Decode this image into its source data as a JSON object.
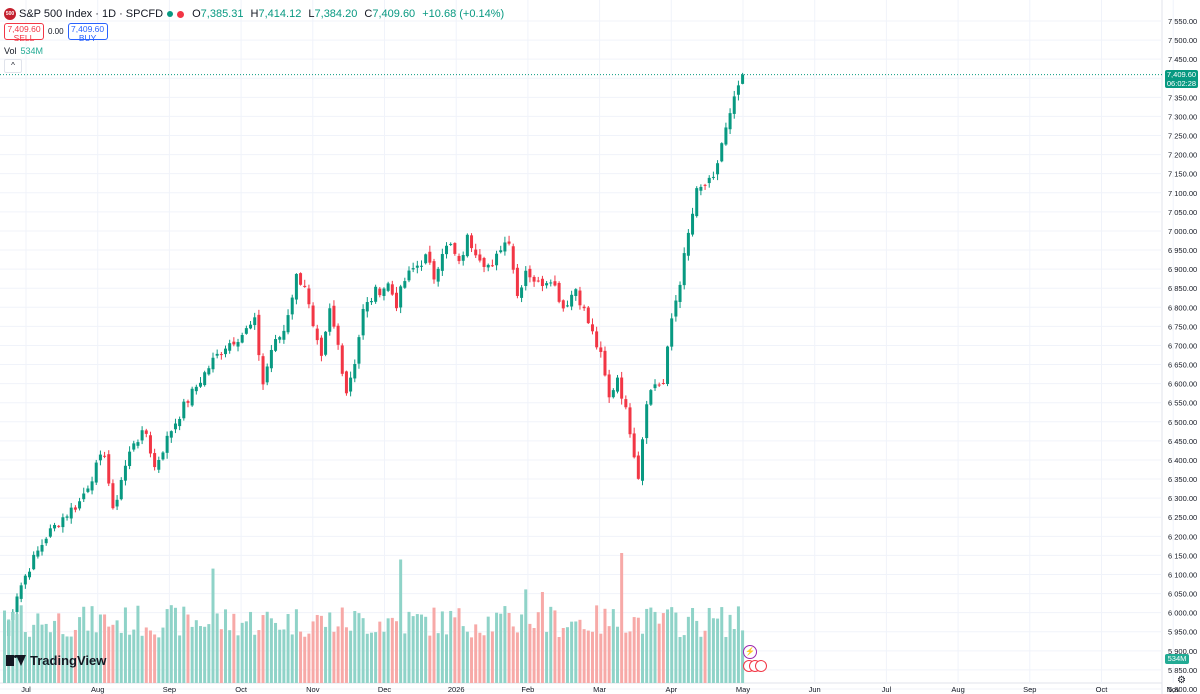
{
  "header": {
    "logo_text": "500",
    "title": "S&P 500 Index · 1D · SPCFD",
    "ohlc": [
      {
        "k": "O",
        "v": "7,385.31"
      },
      {
        "k": "H",
        "v": "7,414.12"
      },
      {
        "k": "L",
        "v": "7,384.20"
      },
      {
        "k": "C",
        "v": "7,409.60"
      },
      {
        "k": "",
        "v": "+10.68 (+0.14%)"
      }
    ]
  },
  "trade": {
    "sell_price": "7,409.60",
    "sell_label": "SELL",
    "spread": "0.00",
    "buy_price": "7,409.60",
    "buy_label": "BUY"
  },
  "volume": {
    "label": "Vol",
    "value": "534M",
    "collapse_glyph": "^"
  },
  "branding": {
    "name": "TradingView"
  },
  "last_price": {
    "price": "7,409.60",
    "countdown": "06:02:28"
  },
  "volume_badge": "534M",
  "colors": {
    "up": "#089981",
    "down": "#f23645",
    "vol_up": "#8fd3c8",
    "vol_down": "#f7a9a7",
    "grid": "#f0f3fa"
  },
  "chart_data": {
    "type": "candlestick",
    "y_axis": {
      "min": 5800,
      "max": 7550,
      "step": 50,
      "side": "right"
    },
    "y_ticks": [
      "7,550.00",
      "7,500.00",
      "7,450.00",
      "7,400.00",
      "7,350.00",
      "7,300.00",
      "7,250.00",
      "7,200.00",
      "7,150.00",
      "7,100.00",
      "7,050.00",
      "7,000.00",
      "6,950.00",
      "6,900.00",
      "6,850.00",
      "6,800.00",
      "6,750.00",
      "6,700.00",
      "6,650.00",
      "6,600.00",
      "6,550.00",
      "6,500.00",
      "6,450.00",
      "6,400.00",
      "6,350.00",
      "6,300.00",
      "6,250.00",
      "6,200.00",
      "6,150.00",
      "6,100.00",
      "6,050.00",
      "6,000.00",
      "5,950.00",
      "5,900.00",
      "5,850.00",
      "5,800.00"
    ],
    "x_ticks": [
      "Jul",
      "Aug",
      "Sep",
      "Oct",
      "Nov",
      "Dec",
      "2026",
      "Feb",
      "Mar",
      "Apr",
      "May",
      "Jun",
      "Jul",
      "Aug",
      "Sep",
      "Oct",
      "Nov"
    ],
    "anchors": [
      [
        0,
        5940
      ],
      [
        3,
        6050
      ],
      [
        6,
        6120
      ],
      [
        10,
        6200
      ],
      [
        14,
        6250
      ],
      [
        18,
        6290
      ],
      [
        22,
        6380
      ],
      [
        24,
        6420
      ],
      [
        26,
        6260
      ],
      [
        28,
        6350
      ],
      [
        31,
        6450
      ],
      [
        34,
        6470
      ],
      [
        36,
        6380
      ],
      [
        40,
        6480
      ],
      [
        43,
        6540
      ],
      [
        47,
        6610
      ],
      [
        50,
        6660
      ],
      [
        53,
        6700
      ],
      [
        57,
        6730
      ],
      [
        60,
        6760
      ],
      [
        62,
        6600
      ],
      [
        64,
        6690
      ],
      [
        67,
        6740
      ],
      [
        70,
        6880
      ],
      [
        72,
        6860
      ],
      [
        74,
        6740
      ],
      [
        76,
        6660
      ],
      [
        78,
        6790
      ],
      [
        80,
        6700
      ],
      [
        82,
        6580
      ],
      [
        84,
        6660
      ],
      [
        86,
        6790
      ],
      [
        89,
        6840
      ],
      [
        92,
        6860
      ],
      [
        94,
        6810
      ],
      [
        96,
        6870
      ],
      [
        98,
        6900
      ],
      [
        101,
        6930
      ],
      [
        103,
        6880
      ],
      [
        105,
        6950
      ],
      [
        107,
        6960
      ],
      [
        109,
        6910
      ],
      [
        111,
        6980
      ],
      [
        113,
        6950
      ],
      [
        115,
        6920
      ],
      [
        117,
        6900
      ],
      [
        119,
        6960
      ],
      [
        121,
        6980
      ],
      [
        123,
        6830
      ],
      [
        125,
        6900
      ],
      [
        128,
        6860
      ],
      [
        131,
        6880
      ],
      [
        134,
        6800
      ],
      [
        137,
        6850
      ],
      [
        140,
        6760
      ],
      [
        143,
        6670
      ],
      [
        145,
        6560
      ],
      [
        147,
        6620
      ],
      [
        150,
        6480
      ],
      [
        152,
        6360
      ],
      [
        154,
        6560
      ],
      [
        156,
        6600
      ],
      [
        158,
        6600
      ],
      [
        160,
        6770
      ],
      [
        162,
        6870
      ],
      [
        164,
        6990
      ],
      [
        166,
        7100
      ],
      [
        168,
        7120
      ],
      [
        170,
        7130
      ],
      [
        172,
        7230
      ],
      [
        174,
        7300
      ],
      [
        176,
        7380
      ],
      [
        177,
        7410
      ]
    ],
    "last": {
      "open": 7385.31,
      "high": 7414.12,
      "low": 7384.2,
      "close": 7409.6
    }
  }
}
